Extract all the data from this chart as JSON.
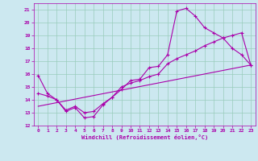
{
  "xlabel": "Windchill (Refroidissement éolien,°C)",
  "bg_color": "#cce8f0",
  "line_color": "#aa00aa",
  "grid_color": "#99ccbb",
  "xlim": [
    -0.5,
    23.5
  ],
  "ylim": [
    12,
    21.5
  ],
  "xticks": [
    0,
    1,
    2,
    3,
    4,
    5,
    6,
    7,
    8,
    9,
    10,
    11,
    12,
    13,
    14,
    15,
    16,
    17,
    18,
    19,
    20,
    21,
    22,
    23
  ],
  "yticks": [
    12,
    13,
    14,
    15,
    16,
    17,
    18,
    19,
    20,
    21
  ],
  "line1_x": [
    0,
    1,
    2,
    3,
    4,
    5,
    6,
    7,
    8,
    9,
    10,
    11,
    12,
    13,
    14,
    15,
    16,
    17,
    18,
    19,
    20,
    21,
    22,
    23
  ],
  "line1_y": [
    15.9,
    14.5,
    14.0,
    13.1,
    13.4,
    12.6,
    12.7,
    13.6,
    14.2,
    14.8,
    15.5,
    15.6,
    16.5,
    16.6,
    17.5,
    20.9,
    21.1,
    20.5,
    19.6,
    19.2,
    18.8,
    18.0,
    17.5,
    16.7
  ],
  "line2_x": [
    0,
    1,
    2,
    3,
    4,
    5,
    6,
    7,
    8,
    9,
    10,
    11,
    12,
    13,
    14,
    15,
    16,
    17,
    18,
    19,
    20,
    21,
    22,
    23
  ],
  "line2_y": [
    14.5,
    14.3,
    14.0,
    13.2,
    13.5,
    13.0,
    13.1,
    13.7,
    14.2,
    15.0,
    15.3,
    15.5,
    15.8,
    16.0,
    16.8,
    17.2,
    17.5,
    17.8,
    18.2,
    18.5,
    18.8,
    19.0,
    19.2,
    16.7
  ],
  "line3_x": [
    0,
    23
  ],
  "line3_y": [
    13.5,
    16.7
  ]
}
